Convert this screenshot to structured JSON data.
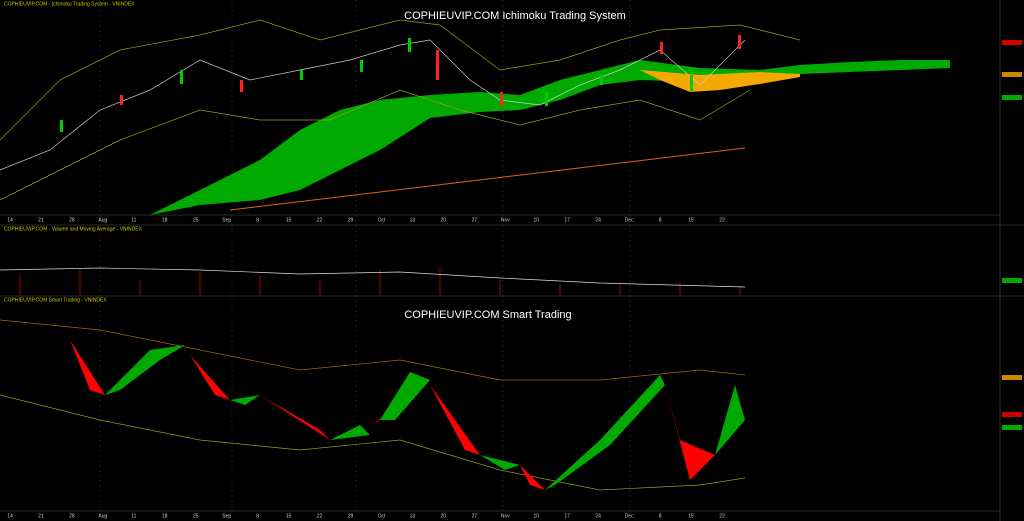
{
  "top_panel": {
    "header": "COPHIEUVIP.COM - Ichimoku Trading System - VNINDEX",
    "title": "COPHIEUVIP.COM Ichimoku Trading System"
  },
  "volume_panel": {
    "header": "COPHIEUVIP.COM - Volume and Moving Average - VNINDEX"
  },
  "bottom_panel": {
    "header": "COPHIEUVIP.COM Smart Trading - VNINDEX",
    "title": "COPHIEUVIP.COM Smart Trading"
  },
  "x_axis": {
    "labels": [
      "14",
      "21",
      "28",
      "Aug",
      "11",
      "18",
      "25",
      "Sep",
      "8",
      "15",
      "22",
      "29",
      "Oct",
      "13",
      "20",
      "27",
      "Nov",
      "10",
      "17",
      "24",
      "Dec",
      "8",
      "15",
      "22"
    ]
  }
}
